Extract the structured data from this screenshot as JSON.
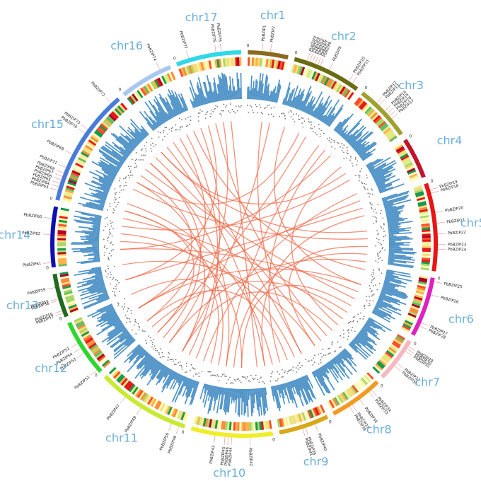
{
  "chromosomes": [
    {
      "name": "chr1",
      "length": 3.2,
      "color": "#8b6a1f"
    },
    {
      "name": "chr2",
      "length": 5.5,
      "color": "#6b6b12"
    },
    {
      "name": "chr3",
      "length": 4.5,
      "color": "#a0a030"
    },
    {
      "name": "chr4",
      "length": 3.3,
      "color": "#c0152a"
    },
    {
      "name": "chr5",
      "length": 7.0,
      "color": "#e81515"
    },
    {
      "name": "chr6",
      "length": 4.8,
      "color": "#e020c0"
    },
    {
      "name": "chr7",
      "length": 3.6,
      "color": "#f4b8c0"
    },
    {
      "name": "chr8",
      "length": 4.3,
      "color": "#f29a20"
    },
    {
      "name": "chr9",
      "length": 4.0,
      "color": "#d8a81a"
    },
    {
      "name": "chr10",
      "length": 6.5,
      "color": "#f0ee2a"
    },
    {
      "name": "chr11",
      "length": 7.5,
      "color": "#c8ea30"
    },
    {
      "name": "chr12",
      "length": 4.6,
      "color": "#2ed62e"
    },
    {
      "name": "chr13",
      "length": 3.5,
      "color": "#1f6b1f"
    },
    {
      "name": "chr14",
      "length": 4.8,
      "color": "#1010b0"
    },
    {
      "name": "chr15",
      "length": 9.5,
      "color": "#4a7bd8"
    },
    {
      "name": "chr16",
      "length": 4.3,
      "color": "#a8c8f0"
    },
    {
      "name": "chr17",
      "length": 5.2,
      "color": "#30d8e8"
    }
  ],
  "zero_tick": "0",
  "genes": [
    {
      "label": "PbBZIP1",
      "chr": "chr1",
      "pos": 0.35
    },
    {
      "label": "PbBZIP2",
      "chr": "chr1",
      "pos": 0.55
    },
    {
      "label": "PbBZIP3",
      "chr": "chr2",
      "pos": 0.18
    },
    {
      "label": "PbBZIP4",
      "chr": "chr2",
      "pos": 0.22
    },
    {
      "label": "PbBZIP5",
      "chr": "chr2",
      "pos": 0.26
    },
    {
      "label": "PbBZIP6",
      "chr": "chr2",
      "pos": 0.3
    },
    {
      "label": "PbBZIP7",
      "chr": "chr2",
      "pos": 0.34
    },
    {
      "label": "PbBZIP8",
      "chr": "chr2",
      "pos": 0.38
    },
    {
      "label": "PbBZIP9",
      "chr": "chr2",
      "pos": 0.52
    },
    {
      "label": "PbBZIP10",
      "chr": "chr2",
      "pos": 0.84
    },
    {
      "label": "PbBZIP11",
      "chr": "chr2",
      "pos": 0.9
    },
    {
      "label": "PbBZIP12",
      "chr": "chr3",
      "pos": 0.3
    },
    {
      "label": "PbBZIP13",
      "chr": "chr3",
      "pos": 0.36
    },
    {
      "label": "PbBZIP14",
      "chr": "chr3",
      "pos": 0.5
    },
    {
      "label": "PbBZIP15",
      "chr": "chr3",
      "pos": 0.56
    },
    {
      "label": "PbBZIP16",
      "chr": "chr3",
      "pos": 0.62
    },
    {
      "label": "PbBZIP17",
      "chr": "chr3",
      "pos": 0.68
    },
    {
      "label": "PbBZIP18",
      "chr": "chr5",
      "pos": 0.12
    },
    {
      "label": "PbBZIP19",
      "chr": "chr5",
      "pos": 0.08
    },
    {
      "label": "PbBZIP20",
      "chr": "chr5",
      "pos": 0.34
    },
    {
      "label": "PbBZIP21",
      "chr": "chr5",
      "pos": 0.46
    },
    {
      "label": "PbBZIP22",
      "chr": "chr5",
      "pos": 0.58
    },
    {
      "label": "PbBZIP23",
      "chr": "chr5",
      "pos": 0.7
    },
    {
      "label": "PbBZIP24",
      "chr": "chr5",
      "pos": 0.75
    },
    {
      "label": "PbBZIP25",
      "chr": "chr6",
      "pos": 0.06
    },
    {
      "label": "PbBZIP26",
      "chr": "chr6",
      "pos": 0.28
    },
    {
      "label": "PbBZIP27",
      "chr": "chr6",
      "pos": 0.76
    },
    {
      "label": "PbBZIP28",
      "chr": "chr6",
      "pos": 0.82
    },
    {
      "label": "PbBZIP29",
      "chr": "chr7",
      "pos": 0.12
    },
    {
      "label": "PbBZIP30",
      "chr": "chr7",
      "pos": 0.18
    },
    {
      "label": "PbBZIP31",
      "chr": "chr7",
      "pos": 0.24
    },
    {
      "label": "PbBZIP32",
      "chr": "chr7",
      "pos": 0.56
    },
    {
      "label": "PbBZIP33",
      "chr": "chr7",
      "pos": 0.64
    },
    {
      "label": "PbBZIP34",
      "chr": "chr8",
      "pos": 0.18
    },
    {
      "label": "PbBZIP35",
      "chr": "chr8",
      "pos": 0.24
    },
    {
      "label": "PbBZIP36",
      "chr": "chr8",
      "pos": 0.46
    },
    {
      "label": "PbBZIP37",
      "chr": "chr8",
      "pos": 0.62
    },
    {
      "label": "PbBZIP38",
      "chr": "chr8",
      "pos": 0.68
    },
    {
      "label": "PbBZIP39",
      "chr": "chr9",
      "pos": 0.48
    },
    {
      "label": "PbBZIP40",
      "chr": "chr9",
      "pos": 0.28
    },
    {
      "label": "PbBZIP41",
      "chr": "chr9",
      "pos": 0.54
    },
    {
      "label": "PbBZIP42",
      "chr": "chr10",
      "pos": 0.28
    },
    {
      "label": "PbBZIP43",
      "chr": "chr10",
      "pos": 0.7
    },
    {
      "label": "PbBZIP44",
      "chr": "chr10",
      "pos": 0.5
    },
    {
      "label": "PbBZIP45",
      "chr": "chr10",
      "pos": 0.58
    },
    {
      "label": "PbBZIP46",
      "chr": "chr10",
      "pos": 0.54
    },
    {
      "label": "PbBZIP47",
      "chr": "chr11",
      "pos": 0.7
    },
    {
      "label": "PbBZIP48",
      "chr": "chr11",
      "pos": 0.06
    },
    {
      "label": "PbBZIP49",
      "chr": "chr11",
      "pos": 0.5
    },
    {
      "label": "PbBZIP50",
      "chr": "chr11",
      "pos": 0.14
    },
    {
      "label": "PbBZIP51",
      "chr": "chr12",
      "pos": 0.06
    },
    {
      "label": "PbBZIP52",
      "chr": "chr12",
      "pos": 0.62
    },
    {
      "label": "PbBZIP53",
      "chr": "chr12",
      "pos": 0.42
    },
    {
      "label": "PbBZIP54",
      "chr": "chr12",
      "pos": 0.52
    },
    {
      "label": "PbBZIP55",
      "chr": "chr13",
      "pos": 0.44
    },
    {
      "label": "PbBZIP56",
      "chr": "chr13",
      "pos": 0.4
    },
    {
      "label": "PbBZIP57",
      "chr": "chr13",
      "pos": 0.1
    },
    {
      "label": "PbBZIP58",
      "chr": "chr13",
      "pos": 0.16
    },
    {
      "label": "PbBZIP59",
      "chr": "chr13",
      "pos": 0.7
    },
    {
      "label": "PbBZIP60",
      "chr": "chr14",
      "pos": 0.8
    },
    {
      "label": "PbBZIP61",
      "chr": "chr14",
      "pos": 0.08
    },
    {
      "label": "PbBZIP62",
      "chr": "chr14",
      "pos": 0.54
    },
    {
      "label": "PbBZIP63",
      "chr": "chr15",
      "pos": 0.08
    },
    {
      "label": "PbBZIP64",
      "chr": "chr15",
      "pos": 0.11
    },
    {
      "label": "PbBZIP65",
      "chr": "chr15",
      "pos": 0.14
    },
    {
      "label": "PbBZIP66",
      "chr": "chr15",
      "pos": 0.17
    },
    {
      "label": "PbBZIP67",
      "chr": "chr15",
      "pos": 0.2
    },
    {
      "label": "PbBZIP68",
      "chr": "chr15",
      "pos": 0.4
    },
    {
      "label": "PbBZIP69",
      "chr": "chr15",
      "pos": 0.23
    },
    {
      "label": "PbBZIP70",
      "chr": "chr15",
      "pos": 0.6
    },
    {
      "label": "PbBZIP71",
      "chr": "chr15",
      "pos": 0.28
    },
    {
      "label": "PbBZIP72",
      "chr": "chr15",
      "pos": 0.93
    },
    {
      "label": "PbBZIP73",
      "chr": "chr15",
      "pos": 0.64
    },
    {
      "label": "PbBZIP74",
      "chr": "chr16",
      "pos": 0.8
    },
    {
      "label": "PbBZIP75",
      "chr": "chr17",
      "pos": 0.62
    },
    {
      "label": "PbBZIP76",
      "chr": "chr17",
      "pos": 0.7
    },
    {
      "label": "PbBZIP77",
      "chr": "chr17",
      "pos": 0.2
    }
  ],
  "links": [
    [
      0.02,
      0.42
    ],
    [
      0.05,
      0.3
    ],
    [
      0.08,
      0.62
    ],
    [
      0.1,
      0.52
    ],
    [
      0.12,
      0.74
    ],
    [
      0.14,
      0.36
    ],
    [
      0.15,
      0.88
    ],
    [
      0.18,
      0.55
    ],
    [
      0.2,
      0.7
    ],
    [
      0.21,
      0.47
    ],
    [
      0.24,
      0.82
    ],
    [
      0.25,
      0.4
    ],
    [
      0.27,
      0.6
    ],
    [
      0.28,
      0.93
    ],
    [
      0.3,
      0.66
    ],
    [
      0.32,
      0.85
    ],
    [
      0.33,
      0.5
    ],
    [
      0.35,
      0.78
    ],
    [
      0.37,
      0.58
    ],
    [
      0.38,
      0.96
    ],
    [
      0.4,
      0.72
    ],
    [
      0.42,
      0.9
    ],
    [
      0.44,
      0.64
    ],
    [
      0.46,
      0.8
    ],
    [
      0.48,
      0.98
    ],
    [
      0.5,
      0.76
    ],
    [
      0.52,
      0.86
    ],
    [
      0.54,
      0.68
    ],
    [
      0.56,
      0.92
    ],
    [
      0.58,
      0.83
    ],
    [
      0.6,
      0.97
    ],
    [
      0.62,
      0.79
    ],
    [
      0.64,
      0.91
    ],
    [
      0.66,
      0.84
    ],
    [
      0.7,
      0.95
    ],
    [
      0.03,
      0.58
    ],
    [
      0.07,
      0.83
    ],
    [
      0.11,
      0.45
    ],
    [
      0.16,
      0.77
    ],
    [
      0.19,
      0.66
    ],
    [
      0.23,
      0.88
    ],
    [
      0.26,
      0.51
    ],
    [
      0.31,
      0.74
    ],
    [
      0.34,
      0.63
    ],
    [
      0.39,
      0.87
    ],
    [
      0.43,
      0.75
    ],
    [
      0.47,
      0.89
    ],
    [
      0.53,
      0.79
    ],
    [
      0.57,
      0.94
    ],
    [
      0.61,
      0.86
    ]
  ]
}
